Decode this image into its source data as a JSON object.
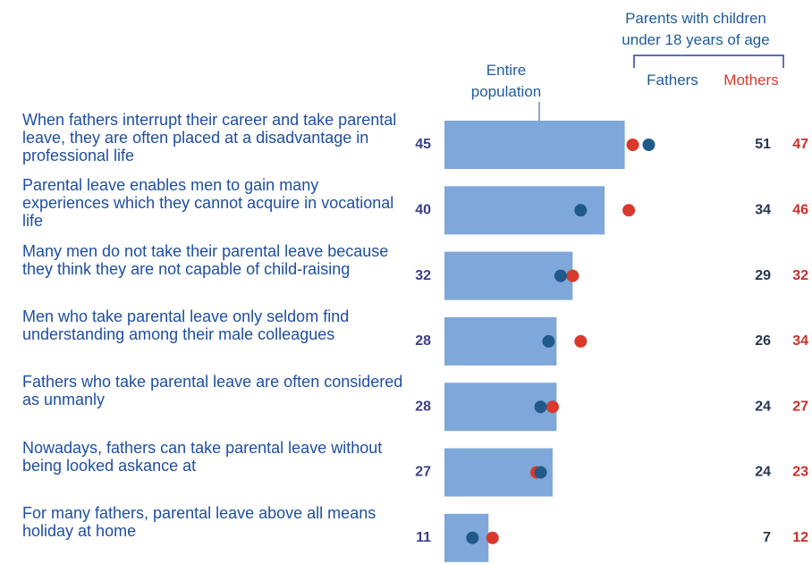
{
  "chart_data": {
    "type": "bar_dot",
    "group_label": "Parents with children under 18 years of age",
    "categories": [
      "When fathers interrupt their career and take parental leave, they are often placed at a disadvantage in professional life",
      "Parental leave enables men to gain many experiences which they cannot acquire in vocational life",
      "Many men do not take their parental leave because they think they are not capable of child-raising",
      "Men who take parental leave only seldom find understanding among their male colleagues",
      "Fathers who take parental leave are often considered as unmanly",
      "Nowadays, fathers can take parental leave without being looked askance at",
      "For many fathers, parental leave above all means holiday at home"
    ],
    "series": [
      {
        "name": "Entire population",
        "color": "#7fa7d9",
        "label_color": "#3b3f8c",
        "values": [
          45,
          40,
          32,
          28,
          28,
          27,
          11
        ]
      },
      {
        "name": "Fathers",
        "color": "#1f5a8a",
        "label_color": "#2b3550",
        "values": [
          51,
          34,
          29,
          26,
          24,
          24,
          7
        ]
      },
      {
        "name": "Mothers",
        "color": "#d8392b",
        "label_color": "#c8302a",
        "values": [
          47,
          46,
          32,
          34,
          27,
          23,
          12
        ]
      }
    ]
  }
}
